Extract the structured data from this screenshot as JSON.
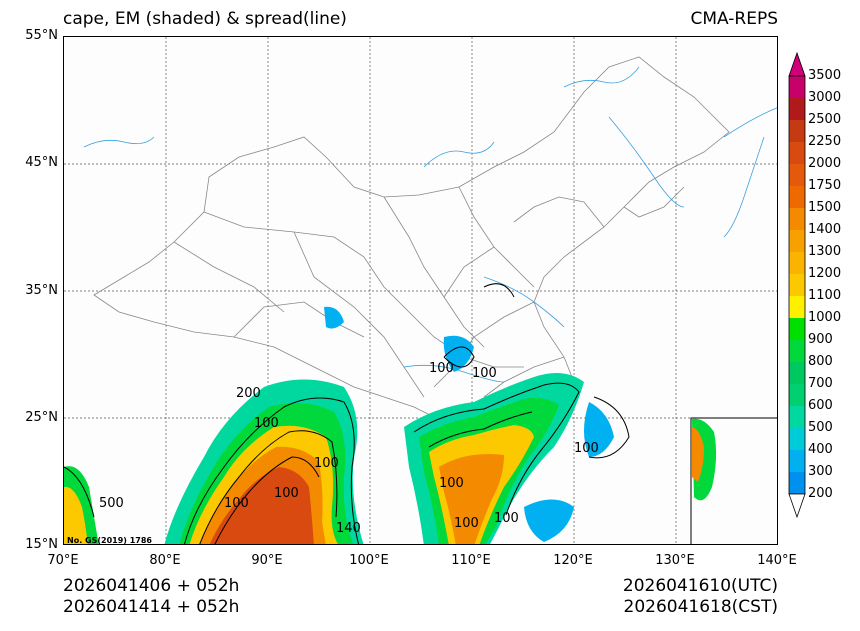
{
  "header": {
    "title": "cape, EM (shaded) & spread(line)",
    "model": "CMA-REPS"
  },
  "axes": {
    "lat_labels": [
      "55°N",
      "45°N",
      "35°N",
      "25°N",
      "15°N"
    ],
    "lon_labels": [
      "70°E",
      "80°E",
      "90°E",
      "100°E",
      "110°E",
      "120°E",
      "130°E",
      "140°E"
    ]
  },
  "footer": {
    "init_utc": "2026041406  +  052h",
    "init_cst": "2026041414  +  052h",
    "valid_utc": "2026041610(UTC)",
    "valid_cst": "2026041618(CST)"
  },
  "map_annotations": {
    "watermark": "No. GS(2019) 1786",
    "contour_labels": [
      "200",
      "100",
      "100",
      "100",
      "500",
      "100",
      "100",
      "100",
      "100",
      "100",
      "100",
      "100",
      "140"
    ]
  },
  "colorbar": {
    "labels": [
      "3500",
      "3000",
      "2500",
      "2250",
      "2000",
      "1750",
      "1500",
      "1400",
      "1300",
      "1200",
      "1100",
      "1000",
      "900",
      "800",
      "700",
      "600",
      "500",
      "400",
      "300",
      "200"
    ],
    "colors": [
      "#c8006a",
      "#b01a1a",
      "#c43a12",
      "#d84a10",
      "#e45a0a",
      "#ee6a00",
      "#f48a00",
      "#f8a000",
      "#fab400",
      "#fcc800",
      "#fff000",
      "#00e000",
      "#00d83c",
      "#00c860",
      "#00d070",
      "#00d8a0",
      "#00ccd8",
      "#00b0f0",
      "#0090ee"
    ],
    "top_color": "#d0007a",
    "bottom_color": "#ffffff"
  }
}
